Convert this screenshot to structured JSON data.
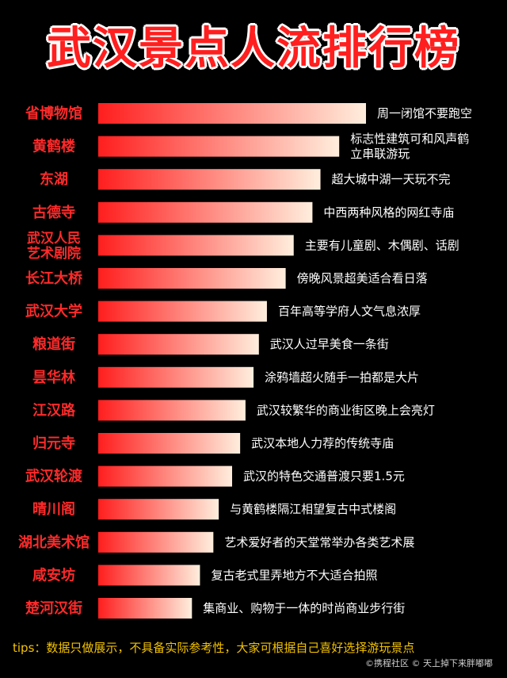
{
  "title": "武汉景点人流排行榜",
  "chart_data": {
    "type": "bar",
    "orientation": "horizontal",
    "categories": [
      "省博物馆",
      "黄鹤楼",
      "东湖",
      "古德寺",
      "武汉人民\n艺术剧院",
      "长江大桥",
      "武汉大学",
      "粮道街",
      "昙华林",
      "江汉路",
      "归元寺",
      "武汉轮渡",
      "晴川阁",
      "湖北美术馆",
      "咸安坊",
      "楚河汉街"
    ],
    "values": [
      100,
      90,
      83,
      80,
      73,
      70,
      63,
      60,
      58,
      55,
      53,
      50,
      45,
      43,
      38,
      35
    ],
    "annotations": [
      "周一闭馆不要跑空",
      "标志性建筑可和风声鹤\n立串联游玩",
      "超大城中湖一天玩不完",
      "中西两种风格的网红寺庙",
      "主要有儿童剧、木偶剧、话剧",
      "傍晚风景超美适合看日落",
      "百年高等学府人文气息浓厚",
      "武汉人过早美食一条街",
      "涂鸦墙超火随手一拍都是大片",
      "武汉较繁华的商业街区晚上会亮灯",
      "武汉本地人力荐的传统寺庙",
      "武汉的特色交通普渡只要1.5元",
      "与黄鹤楼隔江相望复古中式楼阁",
      "艺术爱好者的天堂常举办各类艺术展",
      "复古老式里弄地方不大适合拍照",
      "集商业、购物于一体的时尚商业步行街"
    ],
    "xlim": [
      0,
      100
    ],
    "grid": false,
    "legend": "none",
    "colors": {
      "label": "#ff2a2a",
      "bar_start": "#ff1e1e",
      "bar_end": "#ffeedd",
      "annotation": "#ffffff"
    }
  },
  "footer": {
    "tip": "tips：数据只做展示，不具备实际参考性，大家可根据自己喜好选择游玩景点",
    "credit": "©携程社区 © 天上掉下来胖嘟嘟"
  }
}
